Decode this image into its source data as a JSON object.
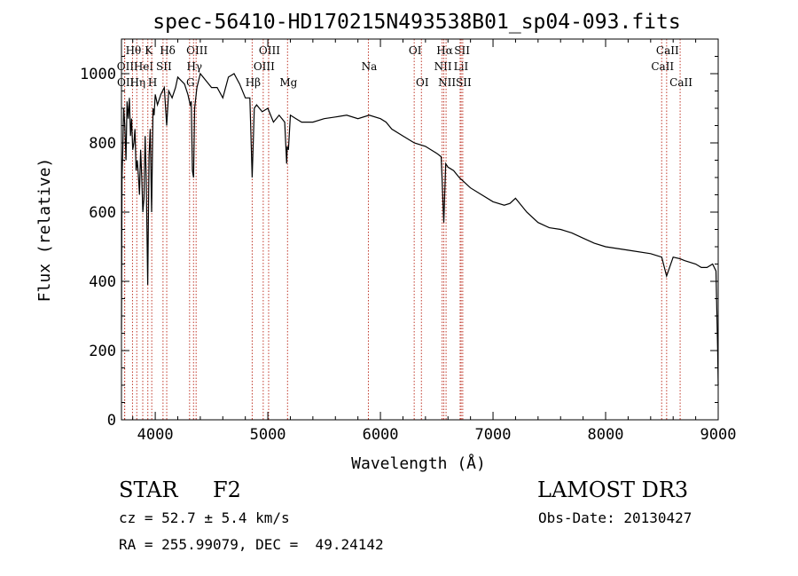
{
  "chart_data": {
    "type": "line",
    "title": "spec-56410-HD170215N493538B01_sp04-093.fits",
    "xlabel": "Wavelength (Å)",
    "ylabel": "Flux (relative)",
    "xlim": [
      3700,
      9000
    ],
    "ylim": [
      0,
      1100
    ],
    "xticks": [
      "4000",
      "5000",
      "6000",
      "7000",
      "8000",
      "9000"
    ],
    "xtick_values": [
      4000,
      5000,
      6000,
      7000,
      8000,
      9000
    ],
    "yticks": [
      "0",
      "200",
      "400",
      "600",
      "800",
      "1000"
    ],
    "ytick_values": [
      0,
      200,
      400,
      600,
      800,
      1000
    ],
    "series": [
      {
        "name": "spectrum",
        "x": [
          3700,
          3705,
          3712,
          3720,
          3730,
          3740,
          3750,
          3760,
          3770,
          3780,
          3790,
          3800,
          3810,
          3820,
          3830,
          3840,
          3850,
          3860,
          3870,
          3880,
          3890,
          3900,
          3910,
          3920,
          3933,
          3945,
          3955,
          3968,
          3980,
          3990,
          4000,
          4020,
          4050,
          4080,
          4102,
          4120,
          4150,
          4180,
          4200,
          4230,
          4260,
          4290,
          4310,
          4320,
          4330,
          4340,
          4350,
          4370,
          4400,
          4450,
          4500,
          4550,
          4600,
          4650,
          4700,
          4750,
          4800,
          4840,
          4861,
          4880,
          4900,
          4950,
          5000,
          5050,
          5100,
          5150,
          5167,
          5172,
          5183,
          5200,
          5250,
          5300,
          5400,
          5500,
          5600,
          5700,
          5800,
          5900,
          6000,
          6050,
          6100,
          6200,
          6300,
          6400,
          6500,
          6540,
          6563,
          6580,
          6600,
          6650,
          6700,
          6800,
          6900,
          7000,
          7100,
          7150,
          7200,
          7300,
          7400,
          7500,
          7600,
          7700,
          7800,
          7900,
          8000,
          8200,
          8400,
          8498,
          8542,
          8600,
          8662,
          8700,
          8800,
          8850,
          8900,
          8950,
          8980,
          8995,
          9000
        ],
        "y": [
          260,
          700,
          780,
          900,
          850,
          750,
          920,
          870,
          930,
          820,
          870,
          780,
          800,
          840,
          720,
          750,
          710,
          650,
          780,
          700,
          600,
          640,
          820,
          700,
          390,
          760,
          840,
          600,
          900,
          880,
          940,
          910,
          940,
          960,
          850,
          950,
          930,
          960,
          990,
          980,
          970,
          940,
          910,
          920,
          720,
          700,
          900,
          960,
          1000,
          980,
          960,
          960,
          930,
          990,
          1000,
          970,
          930,
          930,
          700,
          900,
          910,
          890,
          900,
          860,
          880,
          860,
          740,
          790,
          780,
          880,
          870,
          860,
          860,
          870,
          875,
          880,
          870,
          880,
          870,
          860,
          840,
          820,
          800,
          790,
          770,
          760,
          570,
          740,
          730,
          720,
          700,
          670,
          650,
          630,
          620,
          625,
          640,
          600,
          570,
          555,
          550,
          540,
          525,
          510,
          500,
          490,
          480,
          470,
          415,
          470,
          465,
          460,
          450,
          440,
          440,
          450,
          430,
          200,
          100
        ]
      }
    ],
    "lines": [
      {
        "name": "Hθ",
        "x": 3798,
        "row": 0
      },
      {
        "name": "OII",
        "x": 3727,
        "row": 1
      },
      {
        "name": "OII",
        "x": 3729,
        "row": 2
      },
      {
        "name": "Hη",
        "x": 3836,
        "row": 2
      },
      {
        "name": "K",
        "x": 3934,
        "row": 0
      },
      {
        "name": "HeI",
        "x": 3889,
        "row": 1
      },
      {
        "name": "H",
        "x": 3969,
        "row": 2
      },
      {
        "name": "Hδ",
        "x": 4102,
        "row": 0
      },
      {
        "name": "SII",
        "x": 4069,
        "row": 1
      },
      {
        "name": "OIII",
        "x": 4363,
        "row": 0
      },
      {
        "name": "Hγ",
        "x": 4340,
        "row": 1
      },
      {
        "name": "G",
        "x": 4305,
        "row": 2
      },
      {
        "name": "OIII",
        "x": 5007,
        "row": 0
      },
      {
        "name": "OIII",
        "x": 4959,
        "row": 1
      },
      {
        "name": "Hβ",
        "x": 4861,
        "row": 2
      },
      {
        "name": "Mg",
        "x": 5175,
        "row": 2
      },
      {
        "name": "Na",
        "x": 5893,
        "row": 1
      },
      {
        "name": "OI",
        "x": 6300,
        "row": 0
      },
      {
        "name": "OI",
        "x": 6364,
        "row": 2
      },
      {
        "name": "Hα",
        "x": 6563,
        "row": 0
      },
      {
        "name": "NII",
        "x": 6548,
        "row": 1
      },
      {
        "name": "NII",
        "x": 6583,
        "row": 2
      },
      {
        "name": "SII",
        "x": 6717,
        "row": 0
      },
      {
        "name": "LiI",
        "x": 6708,
        "row": 1
      },
      {
        "name": "SII",
        "x": 6731,
        "row": 2
      },
      {
        "name": "CaII",
        "x": 8542,
        "row": 0
      },
      {
        "name": "CaII",
        "x": 8498,
        "row": 1
      },
      {
        "name": "CaII",
        "x": 8662,
        "row": 2
      }
    ]
  },
  "info": {
    "object_type": "STAR",
    "subclass": "F2",
    "survey": "LAMOST DR3",
    "cz_line": "cz = 52.7 ± 5.4 km/s",
    "obs_date": "Obs-Date: 20130427",
    "radec_line": "RA = 255.99079, DEC =  49.24142"
  }
}
